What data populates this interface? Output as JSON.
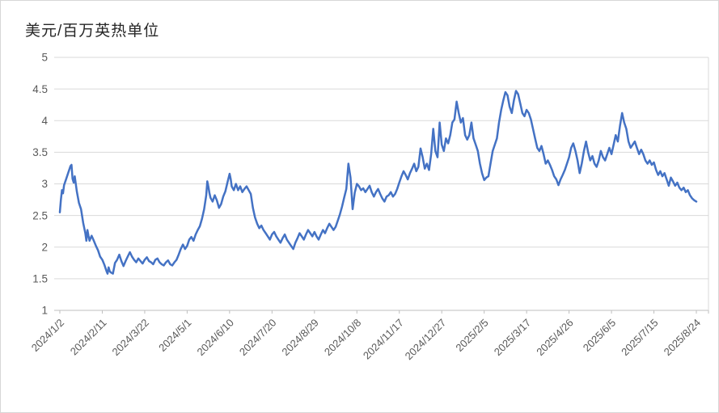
{
  "title": "美元/百万英热单位",
  "chart_data": {
    "type": "line",
    "title": "美元/百万英热单位",
    "unit": "USD per million BTU",
    "legend": "none",
    "grid": true,
    "line_color": "#4472C4",
    "gridline_color": "#D9D9D9",
    "axis_line_color": "#BFBFBF",
    "tick_label_color": "#595959",
    "title_color": "#262626",
    "ylim": [
      1,
      5
    ],
    "y_ticks": [
      5,
      4.5,
      4,
      3.5,
      3,
      2.5,
      2,
      1.5,
      1
    ],
    "x_tick_labels": [
      "2024/1/2",
      "2024/2/11",
      "2024/3/22",
      "2024/5/1",
      "2024/6/10",
      "2024/7/20",
      "2024/8/29",
      "2024/10/8",
      "2024/11/17",
      "2024/12/27",
      "2025/2/5",
      "2025/3/17",
      "2025/4/26",
      "2025/6/5",
      "2025/7/15",
      "2025/8/24"
    ],
    "x_days_per_tick": 40,
    "x_domain_days": [
      0,
      600
    ],
    "points": [
      [
        0,
        2.55
      ],
      [
        1,
        2.75
      ],
      [
        2,
        2.9
      ],
      [
        3,
        2.85
      ],
      [
        4,
        2.98
      ],
      [
        6,
        3.08
      ],
      [
        8,
        3.18
      ],
      [
        10,
        3.28
      ],
      [
        11,
        3.3
      ],
      [
        12,
        3.08
      ],
      [
        13,
        3.02
      ],
      [
        14,
        3.12
      ],
      [
        16,
        2.88
      ],
      [
        18,
        2.7
      ],
      [
        20,
        2.6
      ],
      [
        22,
        2.38
      ],
      [
        24,
        2.22
      ],
      [
        25,
        2.1
      ],
      [
        26,
        2.27
      ],
      [
        27,
        2.18
      ],
      [
        28,
        2.1
      ],
      [
        30,
        2.18
      ],
      [
        32,
        2.1
      ],
      [
        34,
        2.02
      ],
      [
        36,
        1.95
      ],
      [
        38,
        1.85
      ],
      [
        40,
        1.8
      ],
      [
        42,
        1.72
      ],
      [
        44,
        1.62
      ],
      [
        45,
        1.58
      ],
      [
        46,
        1.68
      ],
      [
        47,
        1.62
      ],
      [
        48,
        1.6
      ],
      [
        50,
        1.58
      ],
      [
        52,
        1.75
      ],
      [
        54,
        1.8
      ],
      [
        56,
        1.88
      ],
      [
        58,
        1.78
      ],
      [
        60,
        1.7
      ],
      [
        62,
        1.78
      ],
      [
        64,
        1.85
      ],
      [
        66,
        1.92
      ],
      [
        68,
        1.85
      ],
      [
        70,
        1.8
      ],
      [
        72,
        1.76
      ],
      [
        74,
        1.82
      ],
      [
        76,
        1.78
      ],
      [
        78,
        1.74
      ],
      [
        80,
        1.8
      ],
      [
        82,
        1.84
      ],
      [
        84,
        1.78
      ],
      [
        86,
        1.76
      ],
      [
        88,
        1.73
      ],
      [
        90,
        1.8
      ],
      [
        92,
        1.82
      ],
      [
        94,
        1.76
      ],
      [
        96,
        1.73
      ],
      [
        98,
        1.71
      ],
      [
        100,
        1.76
      ],
      [
        102,
        1.79
      ],
      [
        104,
        1.73
      ],
      [
        106,
        1.71
      ],
      [
        108,
        1.76
      ],
      [
        110,
        1.8
      ],
      [
        112,
        1.88
      ],
      [
        114,
        1.97
      ],
      [
        116,
        2.04
      ],
      [
        118,
        1.97
      ],
      [
        120,
        2.02
      ],
      [
        122,
        2.12
      ],
      [
        124,
        2.16
      ],
      [
        126,
        2.1
      ],
      [
        128,
        2.2
      ],
      [
        130,
        2.27
      ],
      [
        132,
        2.33
      ],
      [
        134,
        2.45
      ],
      [
        136,
        2.6
      ],
      [
        138,
        2.82
      ],
      [
        139,
        3.04
      ],
      [
        140,
        2.96
      ],
      [
        141,
        2.86
      ],
      [
        142,
        2.78
      ],
      [
        144,
        2.72
      ],
      [
        146,
        2.82
      ],
      [
        148,
        2.74
      ],
      [
        150,
        2.62
      ],
      [
        152,
        2.68
      ],
      [
        154,
        2.8
      ],
      [
        156,
        2.88
      ],
      [
        158,
        3.02
      ],
      [
        160,
        3.16
      ],
      [
        161,
        3.08
      ],
      [
        162,
        2.96
      ],
      [
        164,
        2.9
      ],
      [
        166,
        3.0
      ],
      [
        168,
        2.9
      ],
      [
        170,
        2.96
      ],
      [
        172,
        2.87
      ],
      [
        174,
        2.92
      ],
      [
        176,
        2.96
      ],
      [
        178,
        2.9
      ],
      [
        180,
        2.84
      ],
      [
        182,
        2.62
      ],
      [
        184,
        2.47
      ],
      [
        186,
        2.37
      ],
      [
        188,
        2.3
      ],
      [
        190,
        2.34
      ],
      [
        192,
        2.27
      ],
      [
        194,
        2.22
      ],
      [
        196,
        2.17
      ],
      [
        198,
        2.12
      ],
      [
        200,
        2.2
      ],
      [
        202,
        2.24
      ],
      [
        204,
        2.17
      ],
      [
        206,
        2.12
      ],
      [
        208,
        2.07
      ],
      [
        210,
        2.14
      ],
      [
        212,
        2.2
      ],
      [
        214,
        2.12
      ],
      [
        216,
        2.07
      ],
      [
        218,
        2.02
      ],
      [
        220,
        1.97
      ],
      [
        222,
        2.07
      ],
      [
        224,
        2.14
      ],
      [
        226,
        2.22
      ],
      [
        228,
        2.17
      ],
      [
        230,
        2.12
      ],
      [
        232,
        2.2
      ],
      [
        234,
        2.27
      ],
      [
        236,
        2.22
      ],
      [
        238,
        2.17
      ],
      [
        240,
        2.24
      ],
      [
        242,
        2.17
      ],
      [
        244,
        2.12
      ],
      [
        246,
        2.2
      ],
      [
        248,
        2.27
      ],
      [
        250,
        2.22
      ],
      [
        252,
        2.3
      ],
      [
        254,
        2.37
      ],
      [
        256,
        2.32
      ],
      [
        258,
        2.27
      ],
      [
        260,
        2.32
      ],
      [
        262,
        2.42
      ],
      [
        264,
        2.52
      ],
      [
        266,
        2.64
      ],
      [
        268,
        2.78
      ],
      [
        270,
        2.92
      ],
      [
        272,
        3.32
      ],
      [
        274,
        3.1
      ],
      [
        276,
        2.6
      ],
      [
        278,
        2.86
      ],
      [
        280,
        3.0
      ],
      [
        282,
        2.96
      ],
      [
        284,
        2.9
      ],
      [
        286,
        2.93
      ],
      [
        288,
        2.87
      ],
      [
        290,
        2.92
      ],
      [
        292,
        2.97
      ],
      [
        294,
        2.87
      ],
      [
        296,
        2.8
      ],
      [
        298,
        2.87
      ],
      [
        300,
        2.92
      ],
      [
        302,
        2.84
      ],
      [
        304,
        2.77
      ],
      [
        306,
        2.72
      ],
      [
        308,
        2.8
      ],
      [
        310,
        2.82
      ],
      [
        312,
        2.87
      ],
      [
        314,
        2.8
      ],
      [
        316,
        2.84
      ],
      [
        318,
        2.92
      ],
      [
        320,
        3.02
      ],
      [
        322,
        3.12
      ],
      [
        324,
        3.2
      ],
      [
        326,
        3.14
      ],
      [
        328,
        3.07
      ],
      [
        330,
        3.17
      ],
      [
        332,
        3.24
      ],
      [
        334,
        3.32
      ],
      [
        336,
        3.2
      ],
      [
        338,
        3.27
      ],
      [
        340,
        3.56
      ],
      [
        342,
        3.42
      ],
      [
        344,
        3.24
      ],
      [
        346,
        3.32
      ],
      [
        348,
        3.22
      ],
      [
        350,
        3.47
      ],
      [
        352,
        3.87
      ],
      [
        354,
        3.52
      ],
      [
        356,
        3.42
      ],
      [
        358,
        3.97
      ],
      [
        360,
        3.62
      ],
      [
        362,
        3.52
      ],
      [
        364,
        3.72
      ],
      [
        366,
        3.64
      ],
      [
        368,
        3.77
      ],
      [
        370,
        3.97
      ],
      [
        372,
        4.02
      ],
      [
        374,
        4.3
      ],
      [
        376,
        4.12
      ],
      [
        378,
        3.97
      ],
      [
        380,
        4.04
      ],
      [
        382,
        3.77
      ],
      [
        384,
        3.7
      ],
      [
        386,
        3.77
      ],
      [
        388,
        3.97
      ],
      [
        390,
        3.72
      ],
      [
        392,
        3.62
      ],
      [
        394,
        3.52
      ],
      [
        396,
        3.32
      ],
      [
        398,
        3.17
      ],
      [
        400,
        3.06
      ],
      [
        402,
        3.1
      ],
      [
        404,
        3.12
      ],
      [
        406,
        3.32
      ],
      [
        408,
        3.52
      ],
      [
        410,
        3.62
      ],
      [
        412,
        3.72
      ],
      [
        414,
        3.97
      ],
      [
        416,
        4.17
      ],
      [
        418,
        4.32
      ],
      [
        420,
        4.45
      ],
      [
        422,
        4.4
      ],
      [
        424,
        4.22
      ],
      [
        426,
        4.12
      ],
      [
        428,
        4.32
      ],
      [
        430,
        4.47
      ],
      [
        432,
        4.42
      ],
      [
        434,
        4.27
      ],
      [
        436,
        4.12
      ],
      [
        438,
        4.07
      ],
      [
        440,
        4.17
      ],
      [
        442,
        4.12
      ],
      [
        444,
        4.02
      ],
      [
        446,
        3.87
      ],
      [
        448,
        3.72
      ],
      [
        450,
        3.57
      ],
      [
        452,
        3.52
      ],
      [
        454,
        3.6
      ],
      [
        456,
        3.47
      ],
      [
        458,
        3.32
      ],
      [
        460,
        3.37
      ],
      [
        462,
        3.3
      ],
      [
        464,
        3.22
      ],
      [
        466,
        3.12
      ],
      [
        468,
        3.07
      ],
      [
        470,
        2.98
      ],
      [
        472,
        3.07
      ],
      [
        474,
        3.14
      ],
      [
        476,
        3.22
      ],
      [
        478,
        3.32
      ],
      [
        480,
        3.42
      ],
      [
        482,
        3.57
      ],
      [
        484,
        3.64
      ],
      [
        486,
        3.52
      ],
      [
        488,
        3.37
      ],
      [
        490,
        3.17
      ],
      [
        492,
        3.32
      ],
      [
        494,
        3.52
      ],
      [
        496,
        3.67
      ],
      [
        498,
        3.5
      ],
      [
        500,
        3.37
      ],
      [
        502,
        3.44
      ],
      [
        504,
        3.32
      ],
      [
        506,
        3.27
      ],
      [
        508,
        3.37
      ],
      [
        510,
        3.52
      ],
      [
        512,
        3.42
      ],
      [
        514,
        3.37
      ],
      [
        516,
        3.47
      ],
      [
        518,
        3.57
      ],
      [
        520,
        3.47
      ],
      [
        522,
        3.62
      ],
      [
        524,
        3.77
      ],
      [
        526,
        3.67
      ],
      [
        528,
        3.92
      ],
      [
        530,
        4.12
      ],
      [
        532,
        3.97
      ],
      [
        534,
        3.87
      ],
      [
        536,
        3.67
      ],
      [
        538,
        3.57
      ],
      [
        540,
        3.62
      ],
      [
        542,
        3.67
      ],
      [
        544,
        3.57
      ],
      [
        546,
        3.47
      ],
      [
        548,
        3.54
      ],
      [
        550,
        3.47
      ],
      [
        552,
        3.37
      ],
      [
        554,
        3.32
      ],
      [
        556,
        3.37
      ],
      [
        558,
        3.3
      ],
      [
        560,
        3.34
      ],
      [
        562,
        3.22
      ],
      [
        564,
        3.14
      ],
      [
        566,
        3.2
      ],
      [
        568,
        3.12
      ],
      [
        570,
        3.17
      ],
      [
        572,
        3.07
      ],
      [
        574,
        2.97
      ],
      [
        576,
        3.1
      ],
      [
        578,
        3.04
      ],
      [
        580,
        2.97
      ],
      [
        582,
        3.02
      ],
      [
        584,
        2.94
      ],
      [
        586,
        2.9
      ],
      [
        588,
        2.94
      ],
      [
        590,
        2.87
      ],
      [
        592,
        2.9
      ],
      [
        594,
        2.82
      ],
      [
        596,
        2.77
      ],
      [
        598,
        2.74
      ],
      [
        600,
        2.72
      ]
    ]
  }
}
